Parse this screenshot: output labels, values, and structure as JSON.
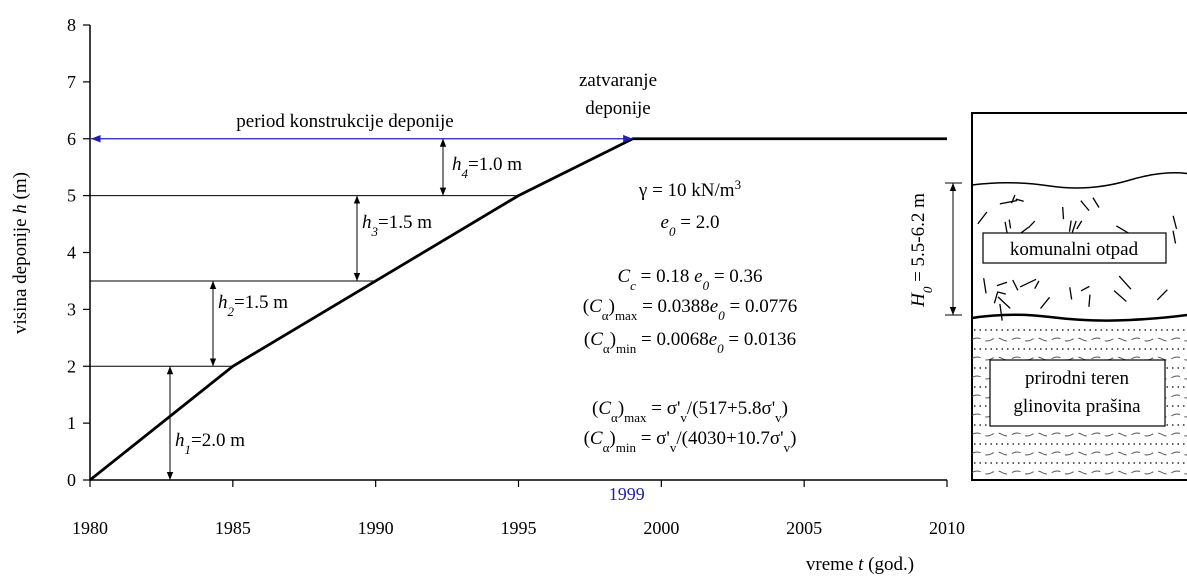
{
  "chart_data": {
    "type": "line",
    "x": [
      1980,
      1985,
      1990,
      1995,
      1999,
      2010
    ],
    "values": [
      0,
      2,
      3.5,
      5,
      6,
      6
    ],
    "color": "#000000",
    "xlim": [
      1980,
      2010
    ],
    "ylim": [
      0,
      8
    ],
    "xticks": [
      1980,
      1985,
      1990,
      1995,
      2000,
      2005,
      2010
    ],
    "yticks": [
      0,
      1,
      2,
      3,
      4,
      5,
      6,
      7,
      8
    ],
    "ylabel": [
      {
        "text": "visina deponije "
      },
      {
        "text": "h",
        "style": "i"
      },
      {
        "text": " (m)"
      }
    ],
    "xlabel": [
      {
        "text": "vreme  "
      },
      {
        "text": "t",
        "style": "i"
      },
      {
        "text": "  (god.)"
      }
    ],
    "layers": [
      [
        {
          "text": "h",
          "style": "i"
        },
        {
          "text": "1",
          "style": "isub"
        },
        {
          "text": "=2.0 m"
        }
      ],
      [
        {
          "text": "h",
          "style": "i"
        },
        {
          "text": "2",
          "style": "isub"
        },
        {
          "text": "=1.5 m"
        }
      ],
      [
        {
          "text": "h",
          "style": "i"
        },
        {
          "text": "3",
          "style": "isub"
        },
        {
          "text": "=1.5 m"
        }
      ],
      [
        {
          "text": "h",
          "style": "i"
        },
        {
          "text": "4",
          "style": "isub"
        },
        {
          "text": "=1.0 m"
        }
      ]
    ],
    "period_label": "period konstrukcije deponije",
    "period_color": "#1f1fb4",
    "closure_label": [
      "zatvaranje",
      "deponije"
    ],
    "formulas": [
      [
        {
          "text": "γ = 10 kN/m"
        },
        {
          "text": "3",
          "style": "sup"
        }
      ],
      [
        {
          "text": "e",
          "style": "i"
        },
        {
          "text": "0",
          "style": "isub"
        },
        {
          "text": " = 2.0"
        }
      ],
      [
        {
          "text": "C",
          "style": "i"
        },
        {
          "text": "c",
          "style": "isub"
        },
        {
          "text": " = 0.18 "
        },
        {
          "text": "e",
          "style": "i"
        },
        {
          "text": "0",
          "style": "isub"
        },
        {
          "text": " = 0.36"
        }
      ],
      [
        {
          "text": "("
        },
        {
          "text": "C",
          "style": "i"
        },
        {
          "text": "α",
          "style": "sub"
        },
        {
          "text": ")"
        },
        {
          "text": "max",
          "style": "sub"
        },
        {
          "text": " = 0.0388"
        },
        {
          "text": "e",
          "style": "i"
        },
        {
          "text": "0",
          "style": "isub"
        },
        {
          "text": " = 0.0776"
        }
      ],
      [
        {
          "text": "("
        },
        {
          "text": "C",
          "style": "i"
        },
        {
          "text": "α",
          "style": "sub"
        },
        {
          "text": ")"
        },
        {
          "text": "min",
          "style": "sub"
        },
        {
          "text": " = 0.0068"
        },
        {
          "text": "e",
          "style": "i"
        },
        {
          "text": "0",
          "style": "isub"
        },
        {
          "text": " = 0.0136"
        }
      ],
      [
        {
          "text": "("
        },
        {
          "text": "C",
          "style": "i"
        },
        {
          "text": "α",
          "style": "sub"
        },
        {
          "text": ")"
        },
        {
          "text": "max",
          "style": "sub"
        },
        {
          "text": " = σ'"
        },
        {
          "text": "v",
          "style": "sub"
        },
        {
          "text": "/(517+5.8σ'"
        },
        {
          "text": "v",
          "style": "sub"
        },
        {
          "text": ")"
        }
      ],
      [
        {
          "text": "("
        },
        {
          "text": "C",
          "style": "i"
        },
        {
          "text": "α",
          "style": "sub"
        },
        {
          "text": ")"
        },
        {
          "text": "min",
          "style": "sub"
        },
        {
          "text": " = σ'"
        },
        {
          "text": "v",
          "style": "sub"
        },
        {
          "text": "/(4030+10.7σ'"
        },
        {
          "text": "v",
          "style": "sub"
        },
        {
          "text": ")"
        }
      ]
    ],
    "profile": {
      "waste": "komunalni otpad",
      "natural": [
        "prirodni teren",
        "glinovita prašina"
      ],
      "thickness": [
        {
          "text": "H",
          "style": "i"
        },
        {
          "text": "0",
          "style": "isub"
        },
        {
          "text": " = 5.5-6.2 m"
        }
      ]
    }
  }
}
